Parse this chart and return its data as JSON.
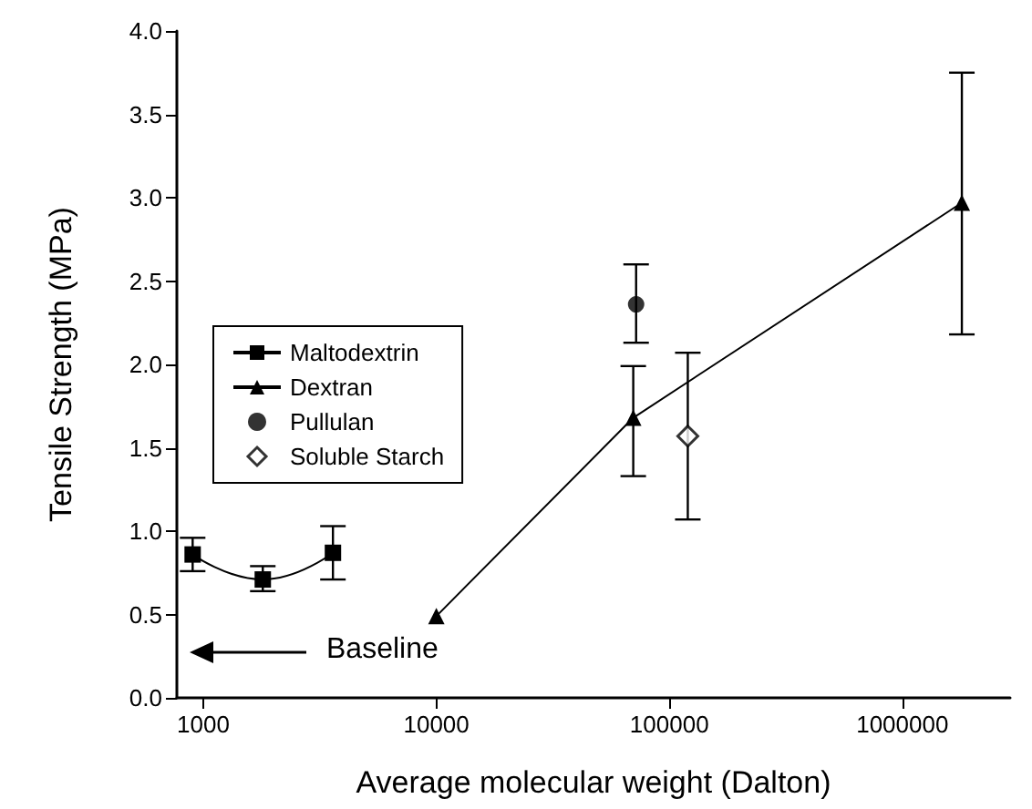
{
  "chart_data": {
    "type": "line",
    "xlabel": "Average molecular weight (Dalton)",
    "ylabel": "Tensile Strength (MPa)",
    "log": "x",
    "xlim": [
      770,
      2900000
    ],
    "xticks": [
      1000,
      10000,
      100000,
      1000000
    ],
    "ylim": [
      0,
      4
    ],
    "yticks": [
      {
        "value": 0,
        "label": "0.0"
      },
      {
        "value": 0.5,
        "label": "0.5"
      },
      {
        "value": 1,
        "label": "1.0"
      },
      {
        "value": 1.5,
        "label": "1.5"
      },
      {
        "value": 2,
        "label": "2.0"
      },
      {
        "value": 2.5,
        "label": "2.5"
      },
      {
        "value": 3,
        "label": "3.0"
      },
      {
        "value": 3.5,
        "label": "3.5"
      },
      {
        "value": 4,
        "label": "4.0"
      }
    ],
    "grid": false,
    "legend": "left",
    "series": [
      {
        "name": "Maltodextrin",
        "marker": "square",
        "color": "#000000",
        "x": [
          900,
          1800,
          3600
        ],
        "values": [
          0.86,
          0.71,
          0.87
        ],
        "errors": [
          [
            0.76,
            0.96
          ],
          [
            0.64,
            0.79
          ],
          [
            0.71,
            1.03
          ]
        ]
      },
      {
        "name": "Dextran",
        "marker": "triangle",
        "color": "#000000",
        "x": [
          10000,
          70000,
          1800000
        ],
        "values": [
          0.49,
          1.68,
          2.97
        ],
        "errors": [
          null,
          [
            1.33,
            1.99
          ],
          [
            2.18,
            3.75
          ]
        ]
      },
      {
        "name": "Pullulan",
        "type": "scatter",
        "marker": "circle",
        "color": "#000000",
        "x": [
          72000
        ],
        "values": [
          2.36
        ],
        "errors": [
          [
            2.13,
            2.6
          ]
        ]
      },
      {
        "name": "Soluble Starch",
        "type": "scatter",
        "marker": "diamond",
        "color": "#000000",
        "x": [
          120000
        ],
        "values": [
          1.57
        ],
        "errors": [
          [
            1.07,
            2.07
          ]
        ]
      }
    ],
    "annotations": [
      "Baseline"
    ]
  }
}
